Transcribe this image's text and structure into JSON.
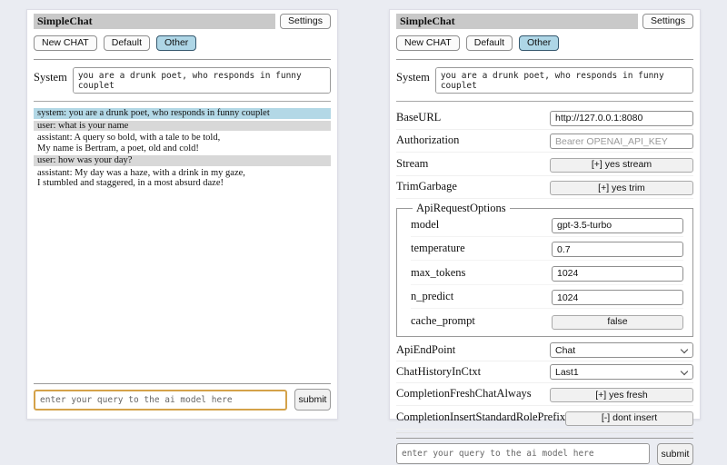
{
  "header": {
    "title": "SimpleChat",
    "settings_label": "Settings"
  },
  "sessions": {
    "new_chat": "New CHAT",
    "default": "Default",
    "other": "Other"
  },
  "system_prompt": {
    "label": "System",
    "value": "you are a drunk poet, who responds in funny couplet"
  },
  "chat": {
    "messages": [
      {
        "role": "system",
        "text": "system: you are a drunk poet, who responds in funny couplet"
      },
      {
        "role": "user",
        "text": "user: what is your name"
      },
      {
        "role": "assistant",
        "text": "assistant: A query so bold, with a tale to be told,\nMy name is Bertram, a poet, old and cold!"
      },
      {
        "role": "user",
        "text": "user: how was your day?"
      },
      {
        "role": "assistant",
        "text": "assistant: My day was a haze, with a drink in my gaze,\nI stumbled and staggered, in a most absurd daze!"
      }
    ]
  },
  "settings": {
    "base_url": {
      "label": "BaseURL",
      "value": "http://127.0.0.1:8080"
    },
    "authorization": {
      "label": "Authorization",
      "placeholder": "Bearer OPENAI_API_KEY"
    },
    "stream": {
      "label": "Stream",
      "button": "[+] yes stream"
    },
    "trim_garbage": {
      "label": "TrimGarbage",
      "button": "[+] yes trim"
    },
    "api_request_options": {
      "legend": "ApiRequestOptions",
      "model": {
        "label": "model",
        "value": "gpt-3.5-turbo"
      },
      "temperature": {
        "label": "temperature",
        "value": "0.7"
      },
      "max_tokens": {
        "label": "max_tokens",
        "value": "1024"
      },
      "n_predict": {
        "label": "n_predict",
        "value": "1024"
      },
      "cache_prompt": {
        "label": "cache_prompt",
        "button": "false"
      }
    },
    "api_endpoint": {
      "label": "ApiEndPoint",
      "value": "Chat"
    },
    "chat_history_in_ctxt": {
      "label": "ChatHistoryInCtxt",
      "value": "Last1"
    },
    "completion_fresh_chat_always": {
      "label": "CompletionFreshChatAlways",
      "button": "[+] yes fresh"
    },
    "completion_insert_standard_role_prefix": {
      "label": "CompletionInsertStandardRolePrefix",
      "button": "[-] dont insert"
    }
  },
  "query": {
    "placeholder": "enter your query to the ai model here",
    "submit_label": "submit"
  },
  "colors": {
    "selected_session_bg": "#aed6e6",
    "system_msg_bg": "#b3d8e6",
    "user_msg_bg": "#d8d8d8",
    "focused_input_border": "#d4a24a",
    "title_bar_bg": "#c9c9c9"
  }
}
